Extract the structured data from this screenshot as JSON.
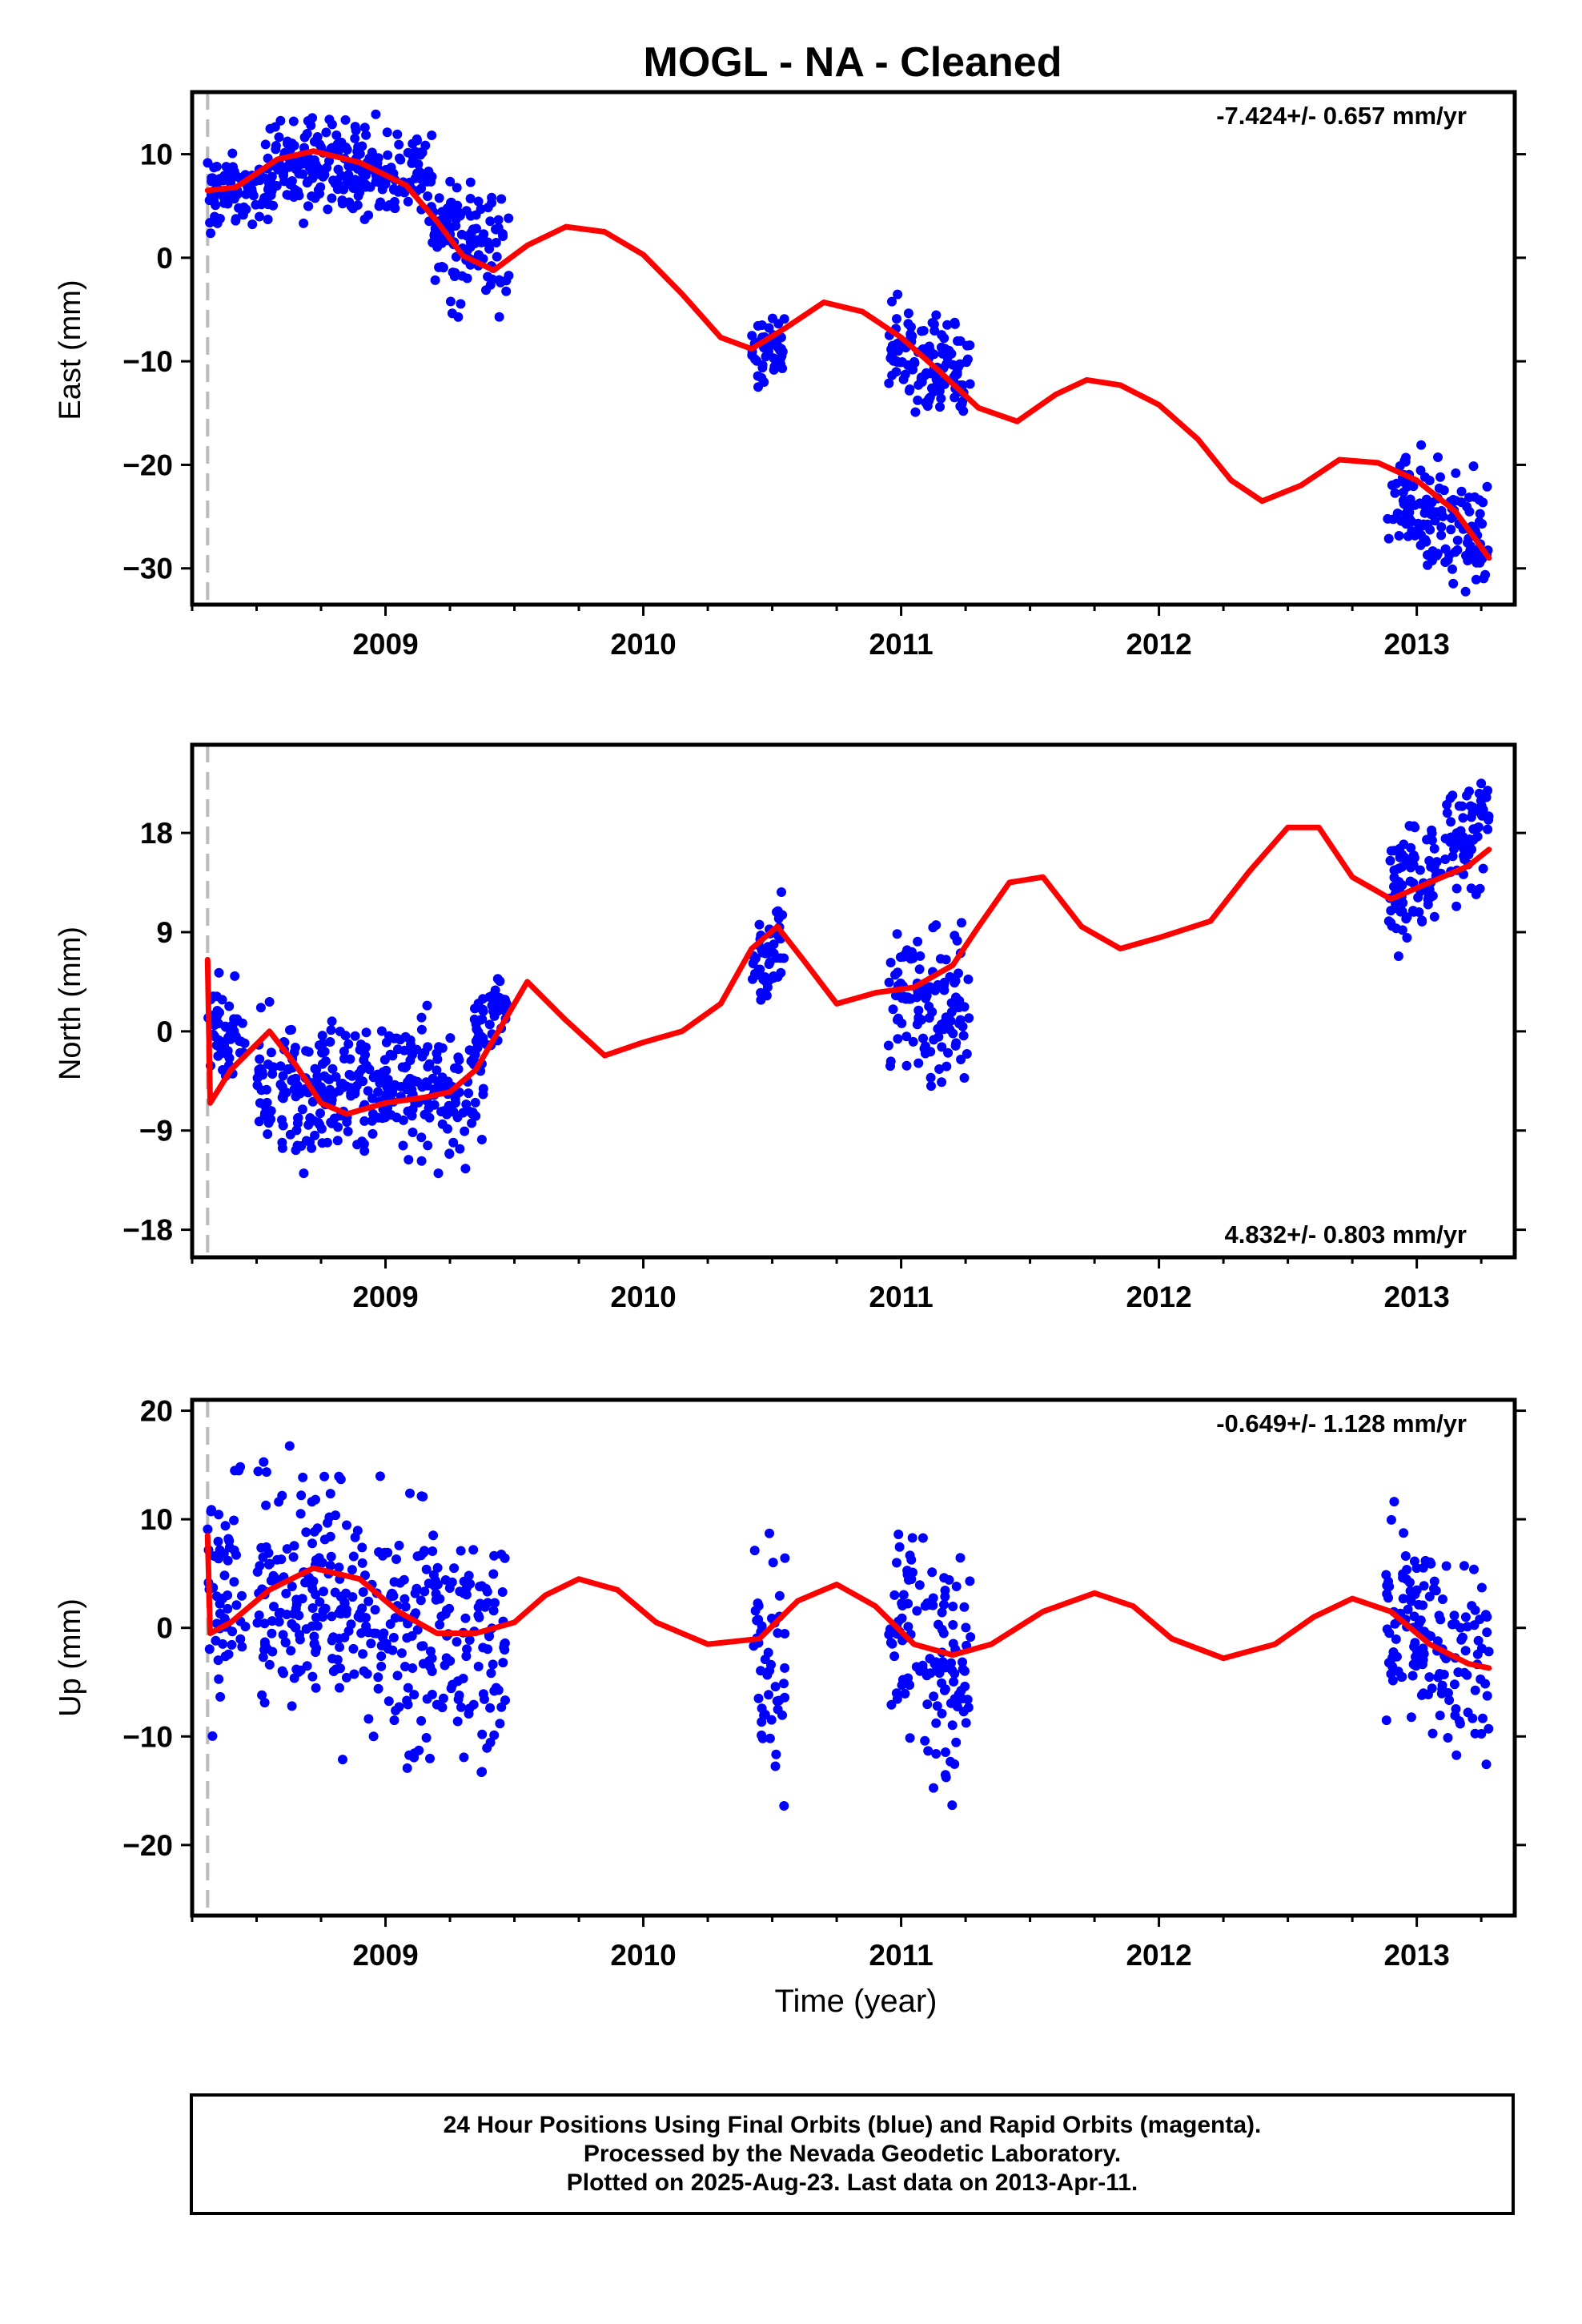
{
  "page_title": "MOGL  - NA - Cleaned",
  "footer": {
    "line1": "24 Hour Positions Using Final Orbits (blue) and Rapid Orbits (magenta).",
    "line2": "Processed by the Nevada Geodetic Laboratory.",
    "line3": "Plotted on 2025-Aug-23. Last data on 2013-Apr-11."
  },
  "colors": {
    "points": "#0000ff",
    "model": "#ff0000",
    "reference_line": "#bbbbbb",
    "frame": "#000000"
  },
  "chart_data": [
    {
      "type": "scatter",
      "panel": "east",
      "ylabel": "East (mm)",
      "xlabel": "",
      "rate_label": "-7.424+/- 0.657 mm/yr",
      "rate_position": "top-right",
      "xlim": [
        2008.25,
        2013.38
      ],
      "ylim": [
        -33.5,
        16
      ],
      "xticks": [
        2009,
        2010,
        2011,
        2012,
        2013
      ],
      "yticks": [
        -30,
        -20,
        -10,
        0,
        10
      ],
      "ytick_labels": [
        "−30",
        "−20",
        "−10",
        "0",
        "10"
      ],
      "reference_line_x": 2008.31,
      "grid": false,
      "segments": [
        {
          "x0": 2008.31,
          "x1": 2008.56,
          "trend": [
            6,
            7
          ],
          "spread": 1.8
        },
        {
          "x0": 2008.55,
          "x1": 2009.18,
          "trend": [
            9.5,
            8
          ],
          "spread": 2.2
        },
        {
          "x0": 2009.18,
          "x1": 2009.48,
          "trend": [
            2,
            1
          ],
          "spread": 3
        },
        {
          "x0": 2010.42,
          "x1": 2010.55,
          "trend": [
            -9,
            -8.5
          ],
          "spread": 1.6
        },
        {
          "x0": 2010.95,
          "x1": 2011.27,
          "trend": [
            -8,
            -12
          ],
          "spread": 2.4
        },
        {
          "x0": 2012.88,
          "x1": 2013.28,
          "trend": [
            -23,
            -27
          ],
          "spread": 2.5
        }
      ],
      "model_curve": {
        "x": [
          2008.31,
          2008.42,
          2008.58,
          2008.72,
          2008.9,
          2009.08,
          2009.2,
          2009.3,
          2009.42,
          2009.55,
          2009.7,
          2009.85,
          2010.0,
          2010.15,
          2010.3,
          2010.42,
          2010.55,
          2010.7,
          2010.85,
          2011.0,
          2011.15,
          2011.3,
          2011.45,
          2011.6,
          2011.72,
          2011.85,
          2012.0,
          2012.15,
          2012.28,
          2012.4,
          2012.55,
          2012.7,
          2012.85,
          2013.0,
          2013.15,
          2013.28
        ],
        "y": [
          6.5,
          6.8,
          9.5,
          10.3,
          9.2,
          7.0,
          3.5,
          0.2,
          -1.2,
          1.2,
          3.0,
          2.5,
          0.3,
          -3.5,
          -7.7,
          -8.8,
          -6.8,
          -4.3,
          -5.2,
          -7.7,
          -11.0,
          -14.5,
          -15.8,
          -13.2,
          -11.8,
          -12.3,
          -14.2,
          -17.5,
          -21.5,
          -23.5,
          -22.0,
          -19.5,
          -19.8,
          -21.5,
          -24.5,
          -29.0
        ]
      }
    },
    {
      "type": "scatter",
      "panel": "north",
      "ylabel": "North (mm)",
      "xlabel": "",
      "rate_label": "4.832+/- 0.803 mm/yr",
      "rate_position": "bottom-right",
      "xlim": [
        2008.25,
        2013.38
      ],
      "ylim": [
        -20.5,
        26
      ],
      "xticks": [
        2009,
        2010,
        2011,
        2012,
        2013
      ],
      "yticks": [
        -18,
        -9,
        0,
        9,
        18
      ],
      "ytick_labels": [
        "−18",
        "−9",
        "0",
        "9",
        "18"
      ],
      "reference_line_x": 2008.31,
      "grid": false,
      "segments": [
        {
          "x0": 2008.31,
          "x1": 2008.46,
          "trend": [
            1,
            0
          ],
          "spread": 2
        },
        {
          "x0": 2008.5,
          "x1": 2009.38,
          "trend": [
            -5,
            -5.5
          ],
          "spread": 3
        },
        {
          "x0": 2009.34,
          "x1": 2009.47,
          "trend": [
            0,
            3
          ],
          "spread": 2
        },
        {
          "x0": 2010.42,
          "x1": 2010.55,
          "trend": [
            5.5,
            8
          ],
          "spread": 2
        },
        {
          "x0": 2010.95,
          "x1": 2011.27,
          "trend": [
            3,
            2
          ],
          "spread": 3
        },
        {
          "x0": 2012.88,
          "x1": 2013.28,
          "trend": [
            12,
            19
          ],
          "spread": 2.5
        }
      ],
      "model_curve": {
        "x": [
          2008.31,
          2008.32,
          2008.4,
          2008.55,
          2008.65,
          2008.75,
          2008.85,
          2009.0,
          2009.15,
          2009.25,
          2009.35,
          2009.45,
          2009.55,
          2009.7,
          2009.85,
          2010.0,
          2010.15,
          2010.3,
          2010.42,
          2010.52,
          2010.62,
          2010.75,
          2010.9,
          2011.05,
          2011.2,
          2011.3,
          2011.42,
          2011.55,
          2011.7,
          2011.85,
          2012.0,
          2012.2,
          2012.35,
          2012.5,
          2012.62,
          2012.75,
          2012.9,
          2013.05,
          2013.2,
          2013.28
        ],
        "y": [
          6.5,
          -6.5,
          -3.5,
          0,
          -3,
          -6.5,
          -7.5,
          -6.5,
          -6.0,
          -5.5,
          -3.5,
          0.5,
          4.5,
          1,
          -2.2,
          -1,
          0,
          2.5,
          7.5,
          9.5,
          6.5,
          2.5,
          3.5,
          4,
          6,
          9.5,
          13.5,
          14,
          9.5,
          7.5,
          8.5,
          10,
          14.5,
          18.5,
          18.5,
          14,
          12,
          13.5,
          15,
          16.5
        ]
      }
    },
    {
      "type": "scatter",
      "panel": "up",
      "ylabel": "Up (mm)",
      "xlabel": "Time (year)",
      "rate_label": "-0.649+/- 1.128 mm/yr",
      "rate_position": "top-right",
      "xlim": [
        2008.25,
        2013.38
      ],
      "ylim": [
        -26.5,
        21
      ],
      "xticks": [
        2009,
        2010,
        2011,
        2012,
        2013
      ],
      "yticks": [
        -20,
        -10,
        0,
        10,
        20
      ],
      "ytick_labels": [
        "−20",
        "−10",
        "0",
        "10",
        "20"
      ],
      "reference_line_x": 2008.31,
      "grid": false,
      "segments": [
        {
          "x0": 2008.31,
          "x1": 2008.46,
          "trend": [
            4,
            3
          ],
          "spread": 5.5
        },
        {
          "x0": 2008.5,
          "x1": 2009.47,
          "trend": [
            4,
            -3
          ],
          "spread": 5.5
        },
        {
          "x0": 2010.42,
          "x1": 2010.55,
          "trend": [
            -3,
            -3
          ],
          "spread": 5
        },
        {
          "x0": 2010.95,
          "x1": 2011.27,
          "trend": [
            1,
            -6
          ],
          "spread": 5
        },
        {
          "x0": 2012.88,
          "x1": 2013.28,
          "trend": [
            2,
            -5
          ],
          "spread": 4
        }
      ],
      "model_curve": {
        "x": [
          2008.31,
          2008.32,
          2008.4,
          2008.55,
          2008.72,
          2008.9,
          2009.05,
          2009.2,
          2009.35,
          2009.5,
          2009.62,
          2009.75,
          2009.9,
          2010.05,
          2010.25,
          2010.45,
          2010.6,
          2010.75,
          2010.9,
          2011.05,
          2011.2,
          2011.35,
          2011.55,
          2011.75,
          2011.9,
          2012.05,
          2012.25,
          2012.45,
          2012.6,
          2012.75,
          2012.9,
          2013.05,
          2013.2,
          2013.28
        ],
        "y": [
          8.5,
          -0.5,
          0.5,
          3.5,
          5.5,
          4.5,
          1.5,
          -0.5,
          -0.5,
          0.5,
          3.0,
          4.5,
          3.5,
          0.5,
          -1.5,
          -1.0,
          2.5,
          4.0,
          2.0,
          -1.5,
          -2.5,
          -1.5,
          1.5,
          3.2,
          2.0,
          -1.0,
          -2.8,
          -1.5,
          1.0,
          2.7,
          1.5,
          -1.5,
          -3.3,
          -3.7
        ]
      }
    }
  ]
}
